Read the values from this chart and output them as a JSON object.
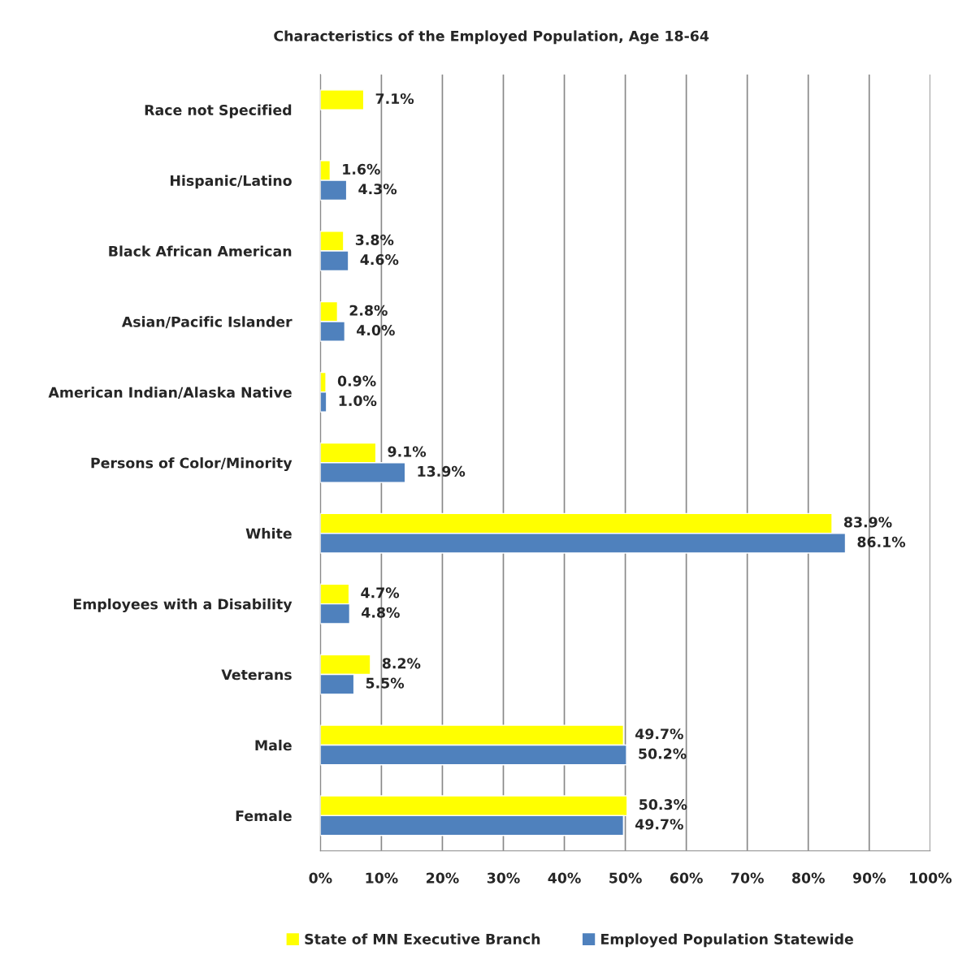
{
  "chart_data": {
    "type": "bar",
    "orientation": "horizontal",
    "title": "Characteristics of the Employed Population, Age 18-64",
    "categories": [
      "Race not Specified",
      "Hispanic/Latino",
      "Black African American",
      "Asian/Pacific Islander",
      "American Indian/Alaska Native",
      "Persons of Color/Minority",
      "White",
      "Employees with a Disability",
      "Veterans",
      "Male",
      "Female"
    ],
    "series": [
      {
        "name": "State of MN Executive Branch",
        "color": "#ffff00",
        "values": [
          7.1,
          1.6,
          3.8,
          2.8,
          0.9,
          9.1,
          83.9,
          4.7,
          8.2,
          49.7,
          50.3
        ],
        "value_labels": [
          "7.1%",
          "1.6%",
          "3.8%",
          "2.8%",
          "0.9%",
          "9.1%",
          "83.9%",
          "4.7%",
          "8.2%",
          "49.7%",
          "50.3%"
        ]
      },
      {
        "name": "Employed Population Statewide",
        "color": "#4f81bd",
        "values": [
          null,
          4.3,
          4.6,
          4.0,
          1.0,
          13.9,
          86.1,
          4.8,
          5.5,
          50.2,
          49.7
        ],
        "value_labels": [
          null,
          "4.3%",
          "4.6%",
          "4.0%",
          "1.0%",
          "13.9%",
          "86.1%",
          "4.8%",
          "5.5%",
          "50.2%",
          "49.7%"
        ]
      }
    ],
    "xlim": [
      0,
      100
    ],
    "xticks": [
      {
        "value": 0,
        "label": "0%"
      },
      {
        "value": 10,
        "label": "10%"
      },
      {
        "value": 20,
        "label": "20%"
      },
      {
        "value": 30,
        "label": "30%"
      },
      {
        "value": 40,
        "label": "40%"
      },
      {
        "value": 50,
        "label": "50%"
      },
      {
        "value": 60,
        "label": "60%"
      },
      {
        "value": 70,
        "label": "70%"
      },
      {
        "value": 80,
        "label": "80%"
      },
      {
        "value": 90,
        "label": "90%"
      },
      {
        "value": 100,
        "label": "100%"
      }
    ],
    "grid": "x",
    "legend": "bottom"
  }
}
